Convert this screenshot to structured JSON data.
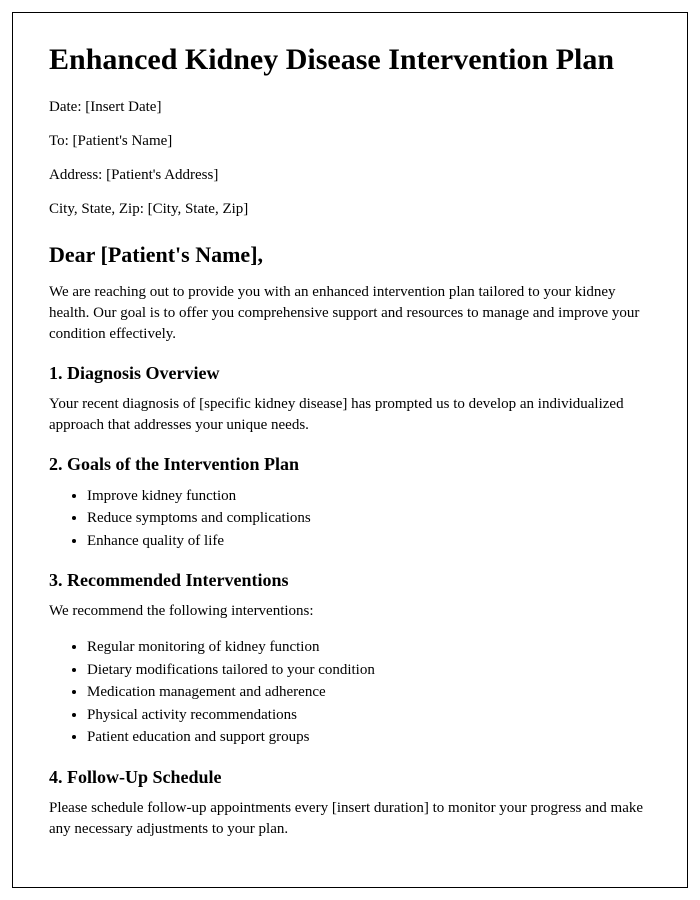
{
  "title": "Enhanced Kidney Disease Intervention Plan",
  "meta": {
    "date": "Date: [Insert Date]",
    "to": "To: [Patient's Name]",
    "address": "Address: [Patient's Address]",
    "citystatezip": "City, State, Zip: [City, State, Zip]"
  },
  "salutation": "Dear [Patient's Name],",
  "intro": "We are reaching out to provide you with an enhanced intervention plan tailored to your kidney health. Our goal is to offer you comprehensive support and resources to manage and improve your condition effectively.",
  "sections": {
    "diagnosis": {
      "heading": "1. Diagnosis Overview",
      "body": "Your recent diagnosis of [specific kidney disease] has prompted us to develop an individualized approach that addresses your unique needs."
    },
    "goals": {
      "heading": "2. Goals of the Intervention Plan",
      "items": [
        "Improve kidney function",
        "Reduce symptoms and complications",
        "Enhance quality of life"
      ]
    },
    "interventions": {
      "heading": "3. Recommended Interventions",
      "lead": "We recommend the following interventions:",
      "items": [
        "Regular monitoring of kidney function",
        "Dietary modifications tailored to your condition",
        "Medication management and adherence",
        "Physical activity recommendations",
        "Patient education and support groups"
      ]
    },
    "followup": {
      "heading": "4. Follow-Up Schedule",
      "body": "Please schedule follow-up appointments every [insert duration] to monitor your progress and make any necessary adjustments to your plan."
    }
  }
}
